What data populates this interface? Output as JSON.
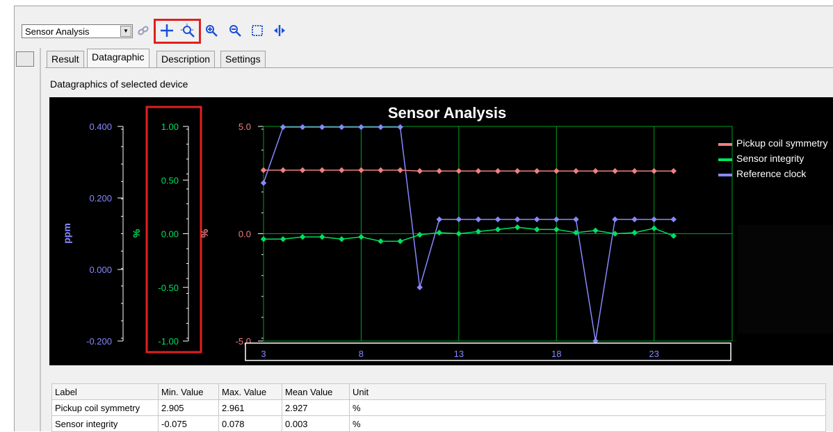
{
  "toolbar": {
    "view_selector": "Sensor Analysis",
    "buttons": [
      {
        "name": "link-icon"
      },
      {
        "name": "pan-icon"
      },
      {
        "name": "auto-zoom-icon"
      },
      {
        "name": "zoom-in-icon"
      },
      {
        "name": "zoom-out-icon"
      },
      {
        "name": "zoom-box-icon"
      },
      {
        "name": "cursor-split-icon"
      }
    ]
  },
  "tabs": [
    {
      "label": "Result"
    },
    {
      "label": "Datagraphic",
      "active": true
    },
    {
      "label": "Description"
    },
    {
      "label": "Settings"
    }
  ],
  "pane_caption": "Datagraphics of selected device",
  "chart_data": {
    "type": "line",
    "title": "Sensor Analysis",
    "x": [
      3,
      4,
      5,
      6,
      7,
      8,
      9,
      10,
      11,
      12,
      13,
      14,
      15,
      16,
      17,
      18,
      19,
      20,
      21,
      22,
      23,
      24
    ],
    "x_ticks": [
      "3",
      "8",
      "13",
      "18",
      "23"
    ],
    "xlim": [
      3,
      27
    ],
    "grid": true,
    "legend_position": "top-right",
    "series": [
      {
        "name": "Pickup coil symmetry",
        "color": "#f08080",
        "axis": "%",
        "values": [
          2.96,
          2.96,
          2.96,
          2.96,
          2.96,
          2.96,
          2.96,
          2.96,
          2.92,
          2.92,
          2.92,
          2.92,
          2.92,
          2.92,
          2.92,
          2.92,
          2.92,
          2.92,
          2.92,
          2.92,
          2.92,
          2.92
        ]
      },
      {
        "name": "Sensor integrity",
        "color": "#00e060",
        "axis": "%",
        "values": [
          -0.05,
          -0.05,
          -0.03,
          -0.03,
          -0.05,
          -0.03,
          -0.07,
          -0.07,
          -0.01,
          0.01,
          0.0,
          0.02,
          0.04,
          0.06,
          0.04,
          0.04,
          0.01,
          0.03,
          0.0,
          0.01,
          0.05,
          -0.02
        ]
      },
      {
        "name": "Reference clock",
        "color": "#8888ff",
        "axis": "ppm",
        "values": [
          0.242,
          0.398,
          0.398,
          0.398,
          0.398,
          0.398,
          0.398,
          0.398,
          -0.05,
          0.14,
          0.14,
          0.14,
          0.14,
          0.14,
          0.14,
          0.14,
          0.14,
          -0.2,
          0.14,
          0.14,
          0.14,
          0.14
        ]
      }
    ],
    "axes": [
      {
        "label": "ppm",
        "color": "#8888ff",
        "range": [
          -0.2,
          0.4
        ],
        "ticks": [
          "0.400",
          "0.200",
          "0.000",
          "-0.200"
        ]
      },
      {
        "label": "%",
        "color": "#00e060",
        "range": [
          -1,
          1
        ],
        "ticks": [
          "1.00",
          "0.50",
          "0.00",
          "-0.50",
          "-1.00"
        ]
      },
      {
        "label": "%",
        "color": "#f08080",
        "range": [
          -5,
          5
        ],
        "ticks": [
          "5.0",
          "0.0",
          "-5.0"
        ]
      }
    ]
  },
  "table": {
    "headers": [
      "Label",
      "Min. Value",
      "Max. Value",
      "Mean Value",
      "Unit"
    ],
    "rows": [
      [
        "Pickup coil symmetry",
        "2.905",
        "2.961",
        "2.927",
        "%"
      ],
      [
        "Sensor integrity",
        "-0.075",
        "0.078",
        "0.003",
        "%"
      ]
    ]
  }
}
